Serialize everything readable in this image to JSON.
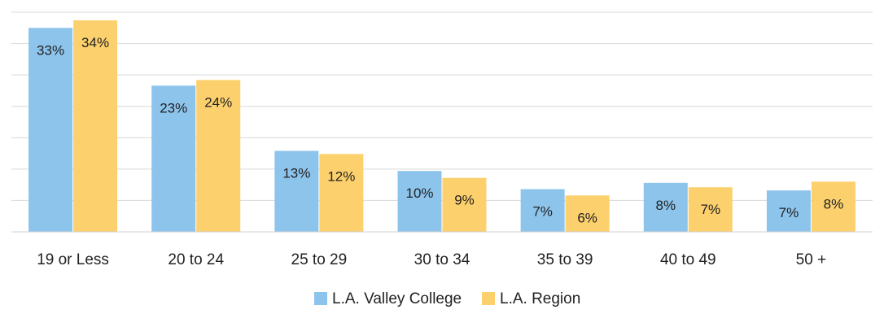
{
  "chart_data": {
    "type": "bar",
    "title": "",
    "xlabel": "",
    "ylabel": "",
    "ylim": [
      0,
      35
    ],
    "grid": true,
    "legend_position": "bottom-center",
    "categories": [
      "19 or Less",
      "20 to 24",
      "25 to 29",
      "30 to 34",
      "35 to 39",
      "40 to 49",
      "50 +"
    ],
    "series": [
      {
        "name": "L.A. Valley College",
        "color": "#8cc4ec",
        "values": [
          32.5,
          23.3,
          12.9,
          9.7,
          6.8,
          7.8,
          6.6
        ],
        "labels": [
          "33%",
          "23%",
          "13%",
          "10%",
          "7%",
          "8%",
          "7%"
        ]
      },
      {
        "name": "L.A. Region",
        "color": "#fcd06c",
        "values": [
          33.7,
          24.2,
          12.4,
          8.6,
          5.8,
          7.1,
          8.0
        ],
        "labels": [
          "34%",
          "24%",
          "12%",
          "9%",
          "6%",
          "7%",
          "8%"
        ]
      }
    ]
  }
}
